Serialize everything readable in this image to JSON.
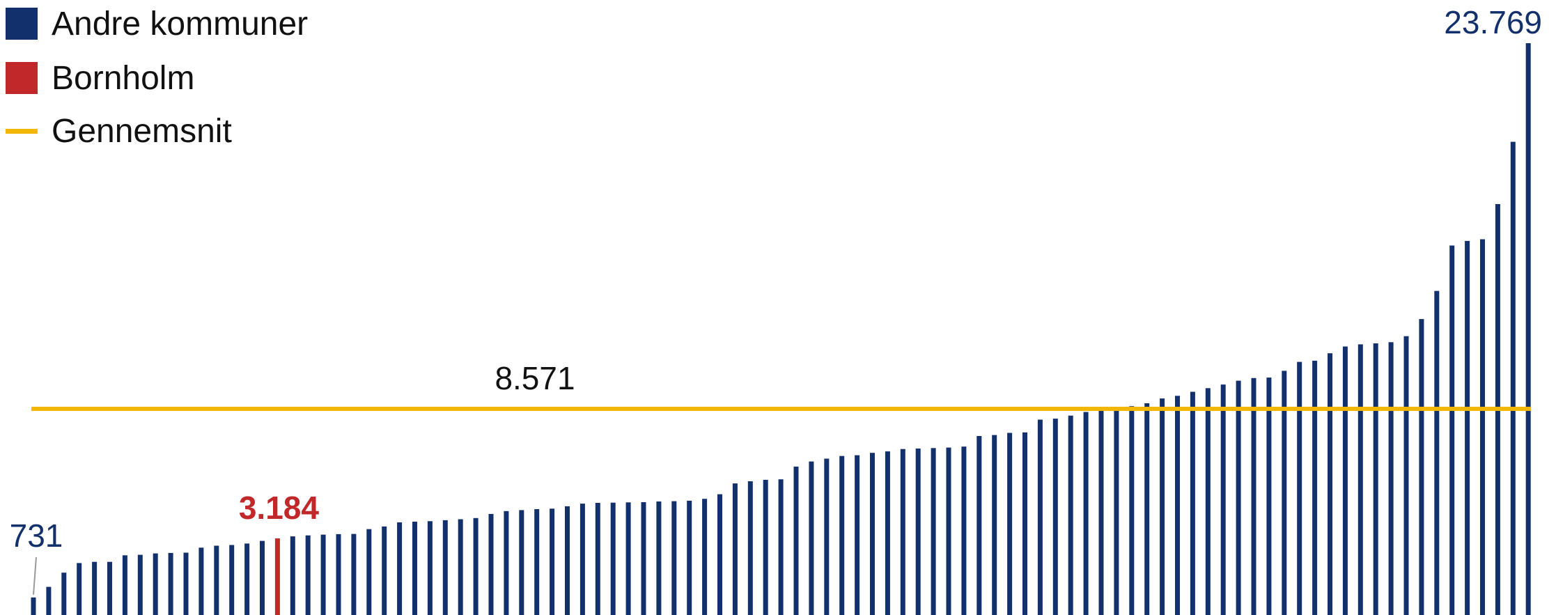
{
  "colors": {
    "bars": "#12306b",
    "highlight": "#c0282a",
    "average": "#f2b705",
    "text": "#111111"
  },
  "legend": {
    "items": [
      {
        "label": "Andre kommuner",
        "kind": "square",
        "color": "#12306b"
      },
      {
        "label": "Bornholm",
        "kind": "square",
        "color": "#c0282a"
      },
      {
        "label": "Gennemsnit",
        "kind": "line",
        "color": "#f2b705"
      }
    ]
  },
  "chart_data": {
    "type": "bar",
    "title": "",
    "xlabel": "",
    "ylabel": "",
    "ylim": [
      0,
      23769
    ],
    "grid": false,
    "legend_position": "top-left",
    "series": [
      {
        "name": "Andre kommuner",
        "color": "#12306b"
      },
      {
        "name": "Bornholm",
        "color": "#c0282a"
      }
    ],
    "highlight_index": 16,
    "values": [
      731,
      1170,
      1760,
      2160,
      2210,
      2210,
      2480,
      2500,
      2560,
      2580,
      2590,
      2800,
      2880,
      2910,
      2970,
      3080,
      3184,
      3270,
      3310,
      3340,
      3360,
      3370,
      3570,
      3680,
      3850,
      3880,
      3900,
      3940,
      3980,
      4030,
      4200,
      4320,
      4360,
      4400,
      4420,
      4520,
      4630,
      4660,
      4670,
      4680,
      4690,
      4720,
      4730,
      4750,
      4830,
      5020,
      5470,
      5560,
      5620,
      5640,
      6170,
      6380,
      6500,
      6610,
      6640,
      6740,
      6800,
      6900,
      6920,
      6940,
      6960,
      7000,
      7440,
      7480,
      7570,
      7590,
      8120,
      8160,
      8290,
      8440,
      8560,
      8620,
      8680,
      8800,
      9000,
      9110,
      9280,
      9430,
      9580,
      9740,
      9850,
      9870,
      10150,
      10520,
      10570,
      10880,
      11160,
      11250,
      11290,
      11340,
      11590,
      12300,
      13470,
      15360,
      15550,
      15620,
      17080,
      19670,
      23769
    ],
    "average": 8571,
    "labels": {
      "first": "731",
      "highlight": "3.184",
      "last": "23.769",
      "average": "8.571"
    }
  }
}
